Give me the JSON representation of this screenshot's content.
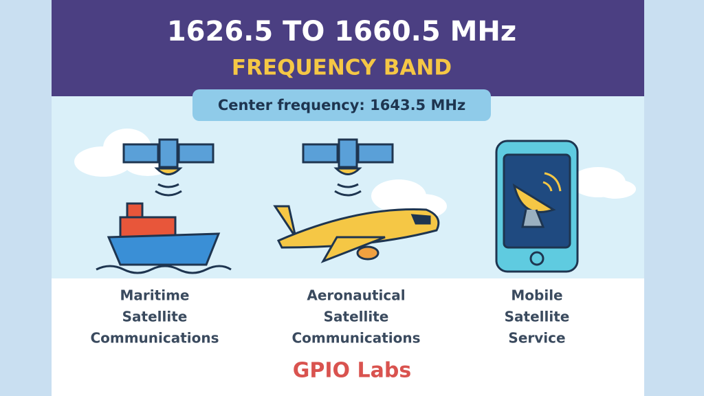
{
  "header": {
    "title": "1626.5 TO 1660.5 MHz",
    "subtitle": "FREQUENCY BAND"
  },
  "center_frequency": "Center frequency: 1643.5 MHz",
  "applications": [
    {
      "lines": [
        "Maritime",
        "Satellite",
        "Communications"
      ]
    },
    {
      "lines": [
        "Aeronautical",
        "Satellite",
        "Communications"
      ]
    },
    {
      "lines": [
        "Mobile",
        "Satellite",
        "Service"
      ]
    }
  ],
  "footer": {
    "brand": "GPIO Labs"
  }
}
